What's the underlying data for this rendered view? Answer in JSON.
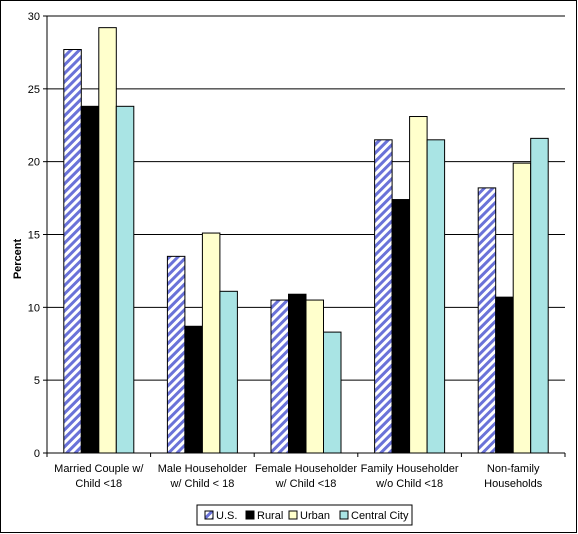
{
  "chart_data": {
    "type": "bar",
    "title": "",
    "xlabel": "",
    "ylabel": "Percent",
    "ylim": [
      0,
      30
    ],
    "yticks": [
      0,
      5,
      10,
      15,
      20,
      25,
      30
    ],
    "grid": true,
    "legend_position": "bottom",
    "categories": [
      [
        "Married Couple w/",
        "Child <18"
      ],
      [
        "Male Householder",
        "w/ Child < 18"
      ],
      [
        "Female Householder",
        "w/ Child <18"
      ],
      [
        "Family Householder",
        "w/o Child <18"
      ],
      [
        "Non-family",
        "Households"
      ]
    ],
    "series": [
      {
        "name": "U.S.",
        "fill": "#ffffff",
        "stripe": "#6a72d8",
        "values": [
          27.7,
          13.5,
          10.5,
          21.5,
          18.2
        ]
      },
      {
        "name": "Rural",
        "fill": "#000000",
        "values": [
          23.8,
          8.7,
          10.9,
          17.4,
          10.7
        ]
      },
      {
        "name": "Urban",
        "fill": "#ffffcc",
        "values": [
          29.2,
          15.1,
          10.5,
          23.1,
          19.9
        ]
      },
      {
        "name": "Central City",
        "fill": "#a9e4e4",
        "values": [
          23.8,
          11.1,
          8.3,
          21.5,
          21.6
        ]
      }
    ]
  }
}
